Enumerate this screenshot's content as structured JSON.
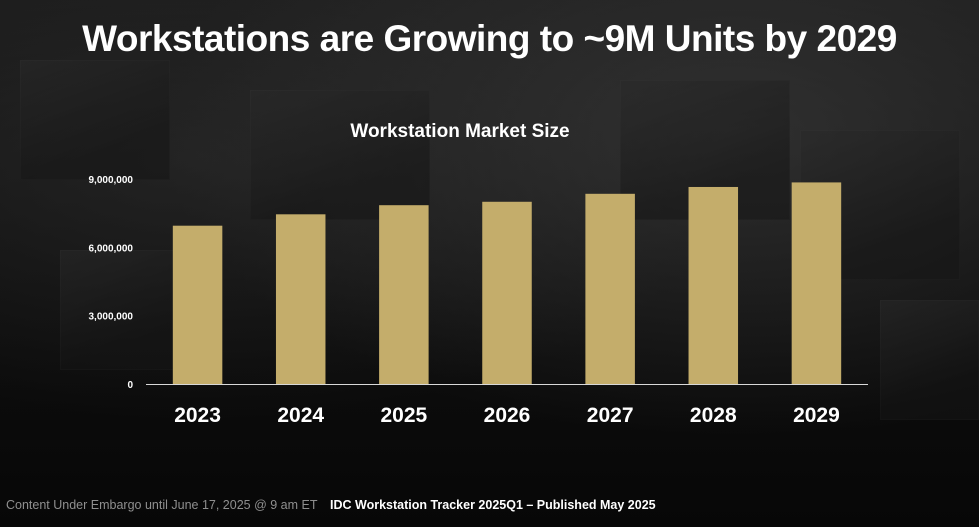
{
  "slide": {
    "title": "Workstations are Growing to ~9M Units by 2029",
    "footer_left": "Content Under Embargo until June 17, 2025 @ 9 am ET",
    "footer_center": "IDC Workstation Tracker 2025Q1 – Published May 2025"
  },
  "chart_data": {
    "type": "bar",
    "title": "Workstation Market Size",
    "xlabel": "",
    "ylabel": "",
    "categories": [
      "2023",
      "2024",
      "2025",
      "2026",
      "2027",
      "2028",
      "2029"
    ],
    "values": [
      6950000,
      7450000,
      7850000,
      8000000,
      8350000,
      8650000,
      8850000
    ],
    "ylim": [
      0,
      9000000
    ],
    "yticks": [
      0,
      3000000,
      6000000,
      9000000
    ],
    "ytick_labels": [
      "0",
      "3,000,000",
      "6,000,000",
      "9,000,000"
    ],
    "grid": false,
    "legend": "none",
    "bar_color": "#c4ad6b"
  }
}
